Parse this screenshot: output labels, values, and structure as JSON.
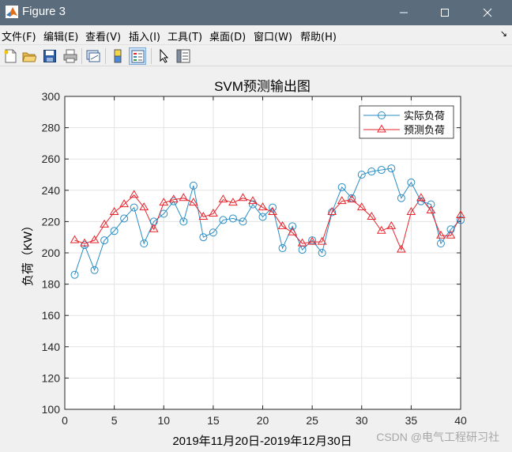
{
  "window": {
    "title": "Figure 3"
  },
  "menu": {
    "file": "文件(F)",
    "edit": "编辑(E)",
    "view": "查看(V)",
    "insert": "插入(I)",
    "tools": "工具(T)",
    "desktop": "桌面(D)",
    "window": "窗口(W)",
    "help": "帮助(H)",
    "dock": "↘"
  },
  "toolbar_icons": [
    "new-figure-icon",
    "open-file-icon",
    "save-icon",
    "print-icon",
    "link-plot-icon",
    "colorbar-icon",
    "legend-icon",
    "pointer-icon",
    "property-inspector-icon"
  ],
  "colors": {
    "actual": "#2a8cc4",
    "predicted": "#e8232b"
  },
  "chart_data": {
    "type": "line",
    "title": "SVM预测输出图",
    "xlabel": "2019年11月20日-2019年12月30日",
    "ylabel": "负荷（KW）",
    "xlim": [
      0,
      40
    ],
    "ylim": [
      100,
      300
    ],
    "xticks": [
      "0",
      "5",
      "10",
      "15",
      "20",
      "25",
      "30",
      "35",
      "40"
    ],
    "yticks": [
      "100",
      "120",
      "140",
      "160",
      "180",
      "200",
      "220",
      "240",
      "260",
      "280",
      "300"
    ],
    "grid": true,
    "legend_position": "top-right",
    "x": [
      1,
      2,
      3,
      4,
      5,
      6,
      7,
      8,
      9,
      10,
      11,
      12,
      13,
      14,
      15,
      16,
      17,
      18,
      19,
      20,
      21,
      22,
      23,
      24,
      25,
      26,
      27,
      28,
      29,
      30,
      31,
      32,
      33,
      34,
      35,
      36,
      37,
      38,
      39,
      40
    ],
    "series": [
      {
        "name": "实际负荷",
        "marker": "circle",
        "values": [
          186,
          205,
          189,
          208,
          214,
          222,
          229,
          206,
          220,
          225,
          233,
          220,
          243,
          210,
          213,
          221,
          222,
          220,
          231,
          223,
          229,
          203,
          217,
          202,
          208,
          200,
          226,
          242,
          235,
          250,
          252,
          253,
          254,
          235,
          245,
          233,
          231,
          206,
          215,
          221
        ]
      },
      {
        "name": "预测负荷",
        "marker": "triangle",
        "values": [
          208,
          206,
          208,
          218,
          226,
          231,
          237,
          229,
          215,
          232,
          234,
          235,
          232,
          223,
          225,
          234,
          232,
          235,
          233,
          229,
          226,
          217,
          213,
          206,
          207,
          207,
          226,
          233,
          234,
          229,
          223,
          214,
          217,
          202,
          226,
          235,
          227,
          211,
          211,
          224
        ]
      }
    ]
  },
  "watermark": "CSDN @电气工程研习社"
}
